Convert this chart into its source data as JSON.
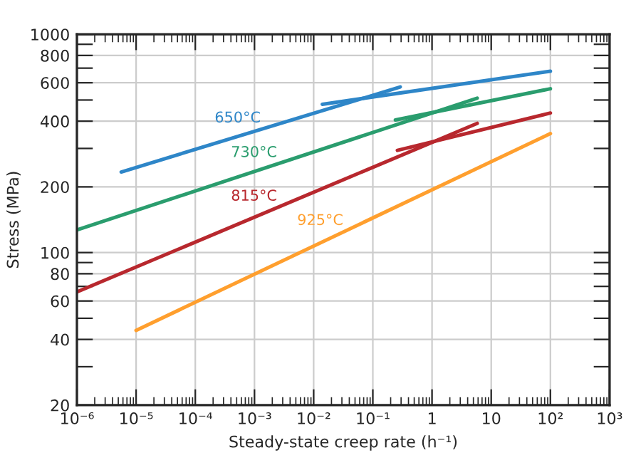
{
  "chart_data": {
    "type": "line",
    "xlabel": "Steady-state creep rate (h⁻¹)",
    "ylabel": "Stress (MPa)",
    "log": "xy",
    "grid": true,
    "legend": false,
    "marker": "none",
    "line_style": "solid",
    "xlim": [
      1e-06,
      1000
    ],
    "ylim": [
      20,
      1000
    ],
    "xticks": [
      {
        "value": 1e-06,
        "label": "10⁻⁶"
      },
      {
        "value": 1e-05,
        "label": "10⁻⁵"
      },
      {
        "value": 0.0001,
        "label": "10⁻⁴"
      },
      {
        "value": 0.001,
        "label": "10⁻³"
      },
      {
        "value": 0.01,
        "label": "10⁻²"
      },
      {
        "value": 0.1,
        "label": "10⁻¹"
      },
      1,
      10,
      {
        "value": 100,
        "label": "10²"
      },
      {
        "value": 1000,
        "label": "10³"
      }
    ],
    "yticks": [
      20,
      {
        "value": 30,
        "label": null
      },
      40,
      {
        "value": 50,
        "label": null
      },
      60,
      {
        "value": 70,
        "label": null
      },
      80,
      {
        "value": 90,
        "label": null
      },
      100,
      200,
      {
        "value": 300,
        "label": null
      },
      400,
      {
        "value": 500,
        "label": null
      },
      600,
      {
        "value": 700,
        "label": null
      },
      800,
      {
        "value": 900,
        "label": null
      },
      1000
    ],
    "series": [
      {
        "name": "650°C",
        "color": "#2e86c8",
        "x": [
          5.6e-06,
          0.29
        ],
        "values": [
          234,
          574
        ]
      },
      {
        "color": "#2e86c8",
        "x": [
          0.014,
          100
        ],
        "values": [
          478,
          678
        ]
      },
      {
        "name": "730°C",
        "color": "#2a9d6e",
        "x": [
          1e-06,
          5.8
        ],
        "values": [
          127,
          510
        ]
      },
      {
        "color": "#2a9d6e",
        "x": [
          0.24,
          100
        ],
        "values": [
          405,
          563
        ]
      },
      {
        "name": "815°C",
        "color": "#b8282e",
        "x": [
          1e-06,
          5.8
        ],
        "values": [
          66,
          391
        ]
      },
      {
        "color": "#b8282e",
        "x": [
          0.26,
          100
        ],
        "values": [
          294,
          436
        ]
      },
      {
        "name": "925°C",
        "color": "#ff9f2e",
        "x": [
          1e-05,
          100
        ],
        "values": [
          44,
          351
        ]
      }
    ]
  }
}
